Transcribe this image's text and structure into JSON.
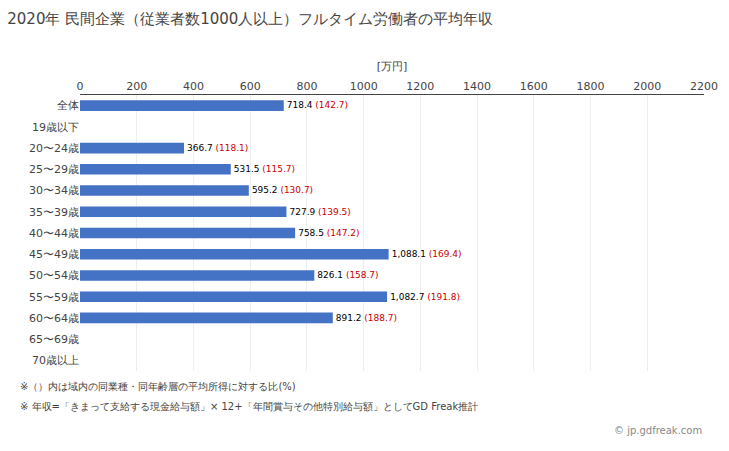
{
  "chart_data": {
    "type": "bar",
    "orientation": "horizontal",
    "title": "2020年 民間企業（従業者数1000人以上）フルタイム労働者の平均年収",
    "xlabel": "[万円]",
    "categories": [
      "全体",
      "19歳以下",
      "20〜24歳",
      "25〜29歳",
      "30〜34歳",
      "35〜39歳",
      "40〜44歳",
      "45〜49歳",
      "50〜54歳",
      "55〜59歳",
      "60〜64歳",
      "65〜69歳",
      "70歳以上"
    ],
    "values": [
      718.4,
      0,
      366.7,
      531.5,
      595.2,
      727.9,
      758.5,
      1088.1,
      826.1,
      1082.7,
      891.2,
      0,
      0
    ],
    "value_labels": [
      "718.4",
      null,
      "366.7",
      "531.5",
      "595.2",
      "727.9",
      "758.5",
      "1,088.1",
      "826.1",
      "1,082.7",
      "891.2",
      null,
      null
    ],
    "data_labels": true,
    "color": "#4472C4",
    "xlim": [
      0,
      2200
    ],
    "xticks": [
      0,
      200,
      400,
      600,
      800,
      1000,
      1200,
      1400,
      1600,
      1800,
      2000,
      2200
    ],
    "grid": true,
    "annotations": [
      {
        "category": "全体",
        "text": "(142.7)",
        "color": "#CC0000"
      },
      {
        "category": "20〜24歳",
        "text": "(118.1)",
        "color": "#CC0000"
      },
      {
        "category": "25〜29歳",
        "text": "(115.7)",
        "color": "#CC0000"
      },
      {
        "category": "30〜34歳",
        "text": "(130.7)",
        "color": "#CC0000"
      },
      {
        "category": "35〜39歳",
        "text": "(139.5)",
        "color": "#CC0000"
      },
      {
        "category": "40〜44歳",
        "text": "(147.2)",
        "color": "#CC0000"
      },
      {
        "category": "45〜49歳",
        "text": "(169.4)",
        "color": "#CC0000"
      },
      {
        "category": "50〜54歳",
        "text": "(158.7)",
        "color": "#CC0000"
      },
      {
        "category": "55〜59歳",
        "text": "(191.8)",
        "color": "#CC0000"
      },
      {
        "category": "60〜64歳",
        "text": "(188.7)",
        "color": "#CC0000"
      },
      {
        "text": "※（）内は域内の同業種・同年齢層の平均所得に対する比(%)"
      },
      {
        "text": "※ 年収=「きまって支給する現金給与額」× 12+「年間賞与その他特別給与額」としてGD Freak推計"
      },
      {
        "text": "© jp.gdfreak.com"
      }
    ]
  }
}
